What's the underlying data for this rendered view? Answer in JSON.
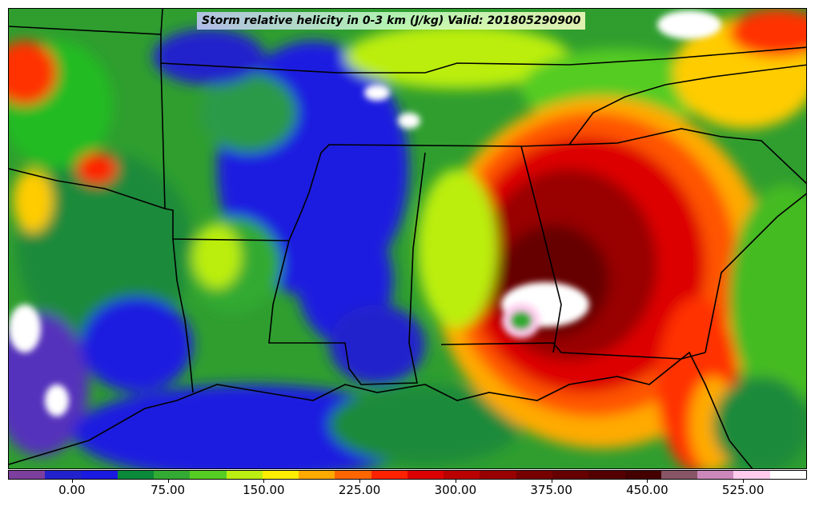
{
  "title": "Storm relative helicity in 0-3 km (J/kg) Valid: 201805290900",
  "colorbar": {
    "colors": [
      "#7d3f9e",
      "#2222cc",
      "#1a1ae0",
      "#0a8a3a",
      "#33aa33",
      "#55cc22",
      "#bbee11",
      "#ffee00",
      "#ffaa00",
      "#ff6600",
      "#ff2200",
      "#dd0000",
      "#bb0000",
      "#990000",
      "#770000",
      "#660000",
      "#550000",
      "#440000",
      "#885566",
      "#cc88bb",
      "#ffccee",
      "#ffffff"
    ],
    "tick_labels": [
      "0.00",
      "75.00",
      "150.00",
      "225.00",
      "300.00",
      "375.00",
      "450.00",
      "525.00"
    ],
    "tick_values": [
      0,
      75,
      150,
      225,
      300,
      375,
      450,
      525
    ],
    "vmin": -50,
    "vmax": 575
  }
}
